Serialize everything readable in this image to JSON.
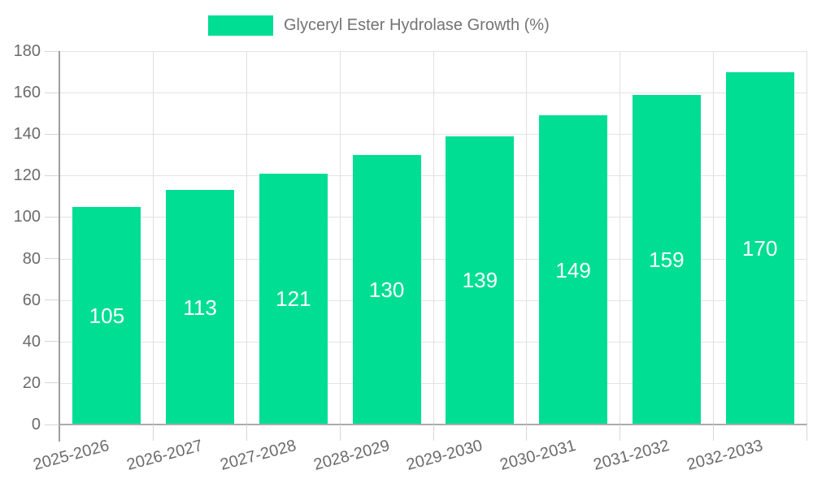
{
  "legend": {
    "label": "Glyceryl Ester Hydrolase Growth (%)"
  },
  "colors": {
    "bar": "#00de94",
    "bar_label_text": "#ffffff",
    "axis_text": "#6b6b6b",
    "legend_text": "#737373",
    "gridline": "#e3e3e3",
    "axis_line": "#9e9e9e"
  },
  "chart_data": {
    "type": "bar",
    "title": "Glyceryl Ester Hydrolase Growth (%)",
    "categories": [
      "2025-2026",
      "2026-2027",
      "2027-2028",
      "2028-2029",
      "2029-2030",
      "2030-2031",
      "2031-2032",
      "2032-2033"
    ],
    "values": [
      105,
      113,
      121,
      130,
      139,
      149,
      159,
      170
    ],
    "xlabel": "",
    "ylabel": "",
    "ylim": [
      0,
      180
    ],
    "ytick_step": 20,
    "yticks": [
      0,
      20,
      40,
      60,
      80,
      100,
      120,
      140,
      160,
      180
    ],
    "grid": true,
    "legend_position": "top-center",
    "bar_value_labels": "inside-middle",
    "x_label_rotation_deg": -15
  }
}
